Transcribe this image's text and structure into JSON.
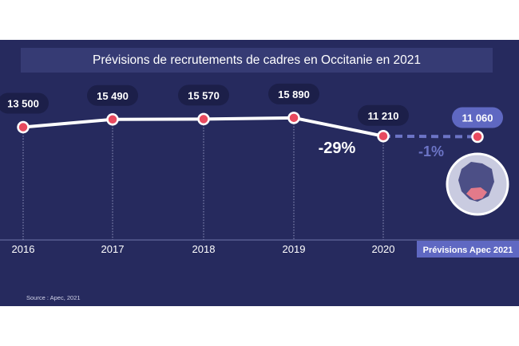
{
  "chart_data": {
    "type": "line",
    "title": "Prévisions de recrutements de cadres en Occitanie en 2021",
    "categories": [
      "2016",
      "2017",
      "2018",
      "2019",
      "2020",
      "Prévisions Apec 2021"
    ],
    "values": [
      13500,
      15490,
      15570,
      15890,
      11210,
      11060
    ],
    "value_labels": [
      "13 500",
      "15 490",
      "15 570",
      "15 890",
      "11 210",
      "11 060"
    ],
    "annotations": [
      {
        "text": "-29%",
        "between": [
          "2019",
          "2020"
        ]
      },
      {
        "text": "-1%",
        "between": [
          "2020",
          "Prévisions Apec 2021"
        ]
      }
    ],
    "forecast_start_index": 4,
    "source": "Source : Apec, 2021"
  },
  "colors": {
    "background": "#262a5e",
    "line": "#ffffff",
    "forecast_line": "#6c74c6",
    "point": "#e84a5f",
    "label_bubble": "#1c1f49",
    "highlight_bubble": "#5f68c2"
  },
  "map_icon": "france-map-occitanie-icon"
}
